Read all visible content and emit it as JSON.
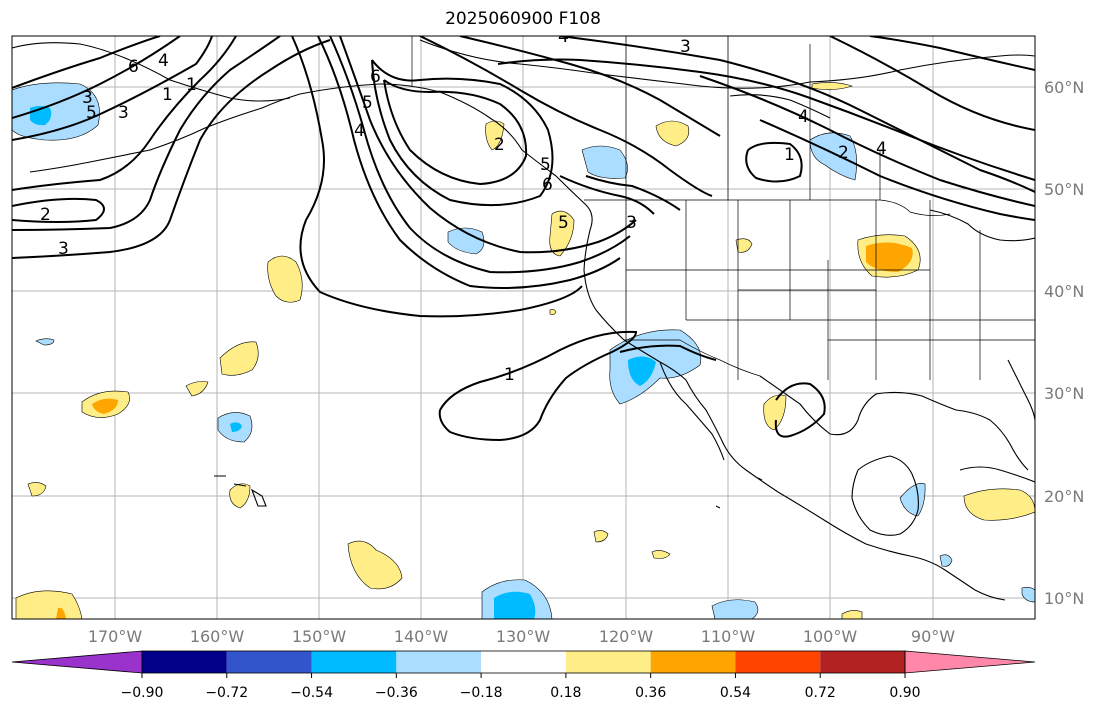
{
  "title": "2025060900 F108",
  "latitude_labels": [
    "60°N",
    "50°N",
    "40°N",
    "30°N",
    "20°N",
    "10°N"
  ],
  "longitude_labels": [
    "170°W",
    "160°W",
    "150°W",
    "140°W",
    "130°W",
    "120°W",
    "110°W",
    "100°W",
    "90°W"
  ],
  "contour_labels": [
    "6",
    "4",
    "5",
    "3",
    "1",
    "6",
    "5",
    "4",
    "4",
    "3",
    "2",
    "3",
    "5",
    "2",
    "3",
    "1",
    "4",
    "5",
    "6",
    "1",
    "2",
    "3",
    "4",
    "1"
  ],
  "colorbar": {
    "tick_labels": [
      "−0.90",
      "−0.72",
      "−0.54",
      "−0.36",
      "−0.18",
      "0.18",
      "0.36",
      "0.54",
      "0.72",
      "0.90"
    ],
    "colors": [
      "#9933cc",
      "#000088",
      "#3355cc",
      "#00bbff",
      "#aaddff",
      "#ffffff",
      "#ffee88",
      "#ffa500",
      "#ff4400",
      "#b22222",
      "#ff88aa"
    ]
  }
}
